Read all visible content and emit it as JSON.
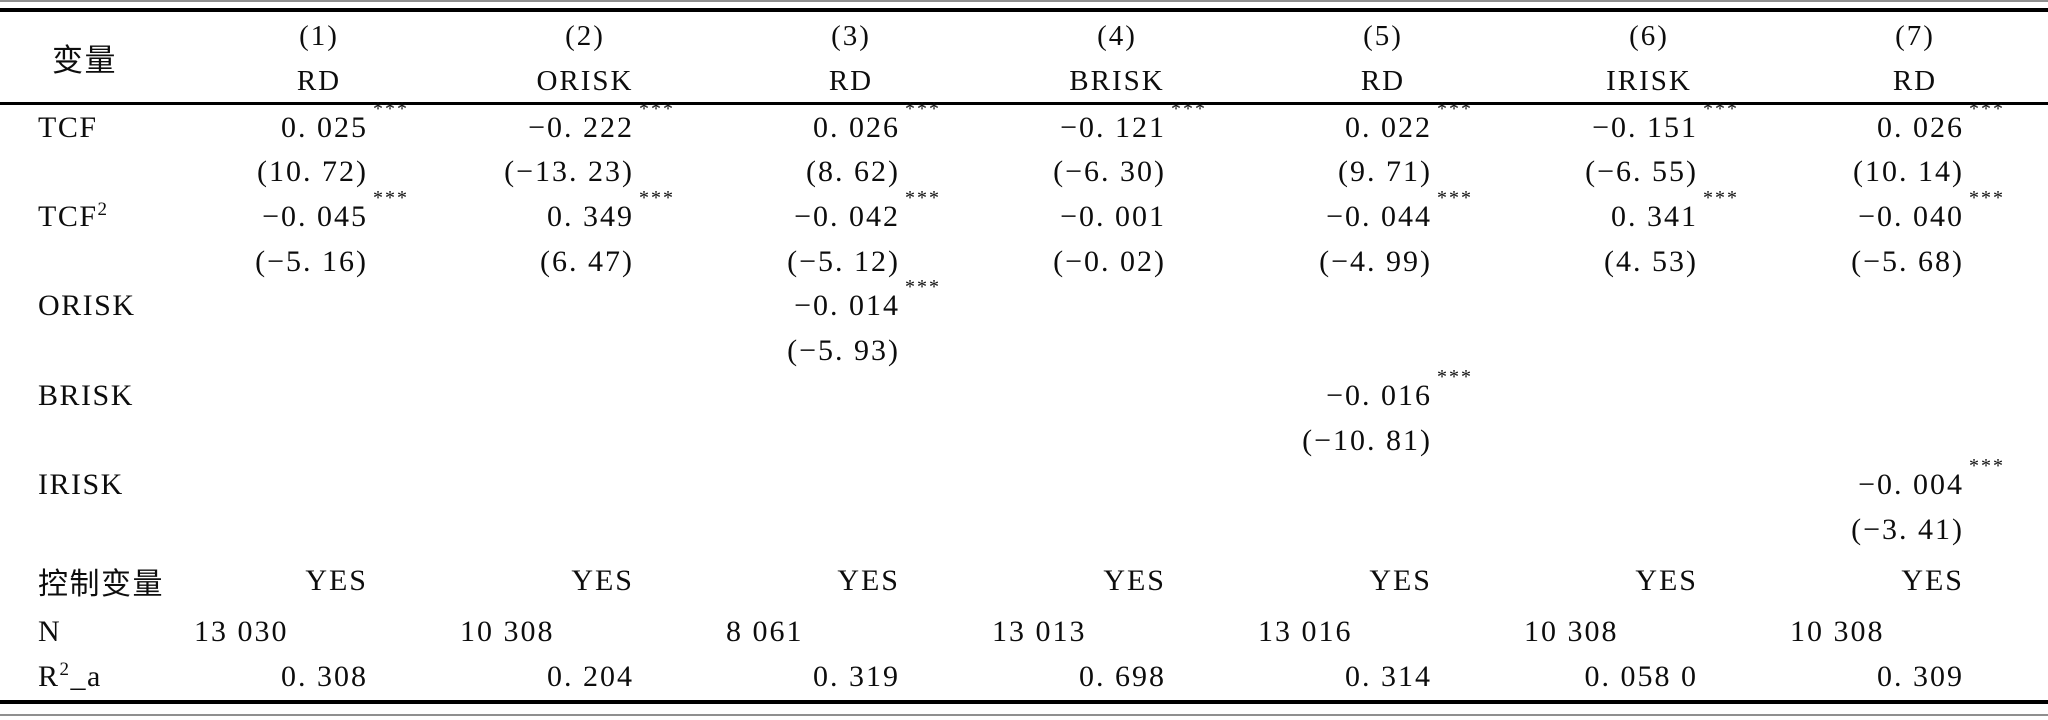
{
  "table": {
    "header": {
      "var_label": "变量",
      "columns": [
        {
          "no": "(1)",
          "dv": "RD"
        },
        {
          "no": "(2)",
          "dv": "ORISK"
        },
        {
          "no": "(3)",
          "dv": "RD"
        },
        {
          "no": "(4)",
          "dv": "BRISK"
        },
        {
          "no": "(5)",
          "dv": "RD"
        },
        {
          "no": "(6)",
          "dv": "IRISK"
        },
        {
          "no": "(7)",
          "dv": "RD"
        }
      ]
    },
    "rows": [
      {
        "label": "TCF",
        "kind": "coef",
        "cells": [
          {
            "v": "0. 025",
            "s": "***"
          },
          {
            "v": "−0. 222",
            "s": "***"
          },
          {
            "v": "0. 026",
            "s": "***"
          },
          {
            "v": "−0. 121",
            "s": "***"
          },
          {
            "v": "0. 022",
            "s": "***"
          },
          {
            "v": "−0. 151",
            "s": "***"
          },
          {
            "v": "0. 026",
            "s": "***"
          }
        ]
      },
      {
        "label": "",
        "kind": "tstat",
        "cells": [
          {
            "v": "(10. 72)"
          },
          {
            "v": "(−13. 23)"
          },
          {
            "v": "(8. 62)"
          },
          {
            "v": "(−6. 30)"
          },
          {
            "v": "(9. 71)"
          },
          {
            "v": "(−6. 55)"
          },
          {
            "v": "(10. 14)"
          }
        ]
      },
      {
        "label": "TCF",
        "label_sup": "2",
        "kind": "coef",
        "cells": [
          {
            "v": "−0. 045",
            "s": "***"
          },
          {
            "v": "0. 349",
            "s": "***"
          },
          {
            "v": "−0. 042",
            "s": "***"
          },
          {
            "v": "−0. 001"
          },
          {
            "v": "−0. 044",
            "s": "***"
          },
          {
            "v": "0. 341",
            "s": "***"
          },
          {
            "v": "−0. 040",
            "s": "***"
          }
        ]
      },
      {
        "label": "",
        "kind": "tstat",
        "cells": [
          {
            "v": "(−5. 16)"
          },
          {
            "v": "(6. 47)"
          },
          {
            "v": "(−5. 12)"
          },
          {
            "v": "(−0. 02)"
          },
          {
            "v": "(−4. 99)"
          },
          {
            "v": "(4. 53)"
          },
          {
            "v": "(−5. 68)"
          }
        ]
      },
      {
        "label": "ORISK",
        "kind": "coef",
        "cells": [
          null,
          null,
          {
            "v": "−0. 014",
            "s": "***"
          },
          null,
          null,
          null,
          null
        ]
      },
      {
        "label": "",
        "kind": "tstat",
        "cells": [
          null,
          null,
          {
            "v": "(−5. 93)"
          },
          null,
          null,
          null,
          null
        ]
      },
      {
        "label": "BRISK",
        "kind": "coef",
        "cells": [
          null,
          null,
          null,
          null,
          {
            "v": "−0. 016",
            "s": "***"
          },
          null,
          null
        ]
      },
      {
        "label": "",
        "kind": "tstat",
        "cells": [
          null,
          null,
          null,
          null,
          {
            "v": "(−10. 81)"
          },
          null,
          null
        ]
      },
      {
        "label": "IRISK",
        "kind": "coef",
        "cells": [
          null,
          null,
          null,
          null,
          null,
          null,
          {
            "v": "−0. 004",
            "s": "***"
          }
        ]
      },
      {
        "label": "",
        "kind": "tstat",
        "cells": [
          null,
          null,
          null,
          null,
          null,
          null,
          {
            "v": "(−3. 41)"
          }
        ]
      },
      {
        "label": "控制变量",
        "kind": "controls",
        "cells": [
          {
            "v": "YES"
          },
          {
            "v": "YES"
          },
          {
            "v": "YES"
          },
          {
            "v": "YES"
          },
          {
            "v": "YES"
          },
          {
            "v": "YES"
          },
          {
            "v": "YES"
          }
        ]
      },
      {
        "label": "N",
        "kind": "obs",
        "cells": [
          {
            "v": "13 030"
          },
          {
            "v": "10 308"
          },
          {
            "v": "8 061"
          },
          {
            "v": "13 013"
          },
          {
            "v": "13 016"
          },
          {
            "v": "10 308"
          },
          {
            "v": "10 308"
          }
        ]
      },
      {
        "label": "R",
        "label_sup": "2",
        "label_tail": "_a",
        "kind": "r2",
        "cells": [
          {
            "v": "0. 308"
          },
          {
            "v": "0. 204"
          },
          {
            "v": "0. 319"
          },
          {
            "v": "0. 698"
          },
          {
            "v": "0. 314"
          },
          {
            "v": "0. 058 0"
          },
          {
            "v": "0. 309"
          }
        ]
      }
    ]
  }
}
